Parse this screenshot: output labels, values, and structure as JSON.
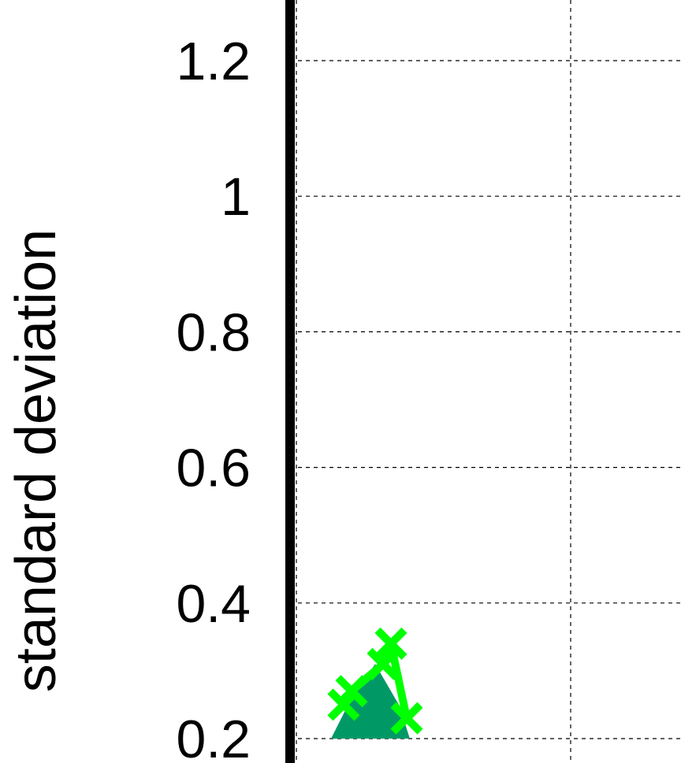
{
  "chart_data": {
    "type": "scatter",
    "title": "",
    "xlabel": "",
    "ylabel": "standard deviation",
    "ylim": [
      0.19,
      1.29
    ],
    "y_ticks": [
      0.2,
      0.4,
      0.6,
      0.8,
      1,
      1.2
    ],
    "y_tick_labels": [
      "0.2",
      "0.4",
      "0.6",
      "0.8",
      "1",
      "1.2"
    ],
    "grid": true,
    "legend": "none",
    "series": [
      {
        "marker": "x",
        "color": "#00ff00",
        "points": [
          {
            "x": 0.3,
            "y": 0.25
          },
          {
            "x": 0.35,
            "y": 0.27
          },
          {
            "x": 0.55,
            "y": 0.31
          },
          {
            "x": 0.6,
            "y": 0.34
          },
          {
            "x": 0.7,
            "y": 0.23
          }
        ]
      }
    ],
    "filled_region": {
      "color": "#009966",
      "x": [
        0.22,
        0.35,
        0.5,
        0.65,
        0.72
      ],
      "y": [
        0.2,
        0.26,
        0.31,
        0.25,
        0.2
      ]
    }
  }
}
